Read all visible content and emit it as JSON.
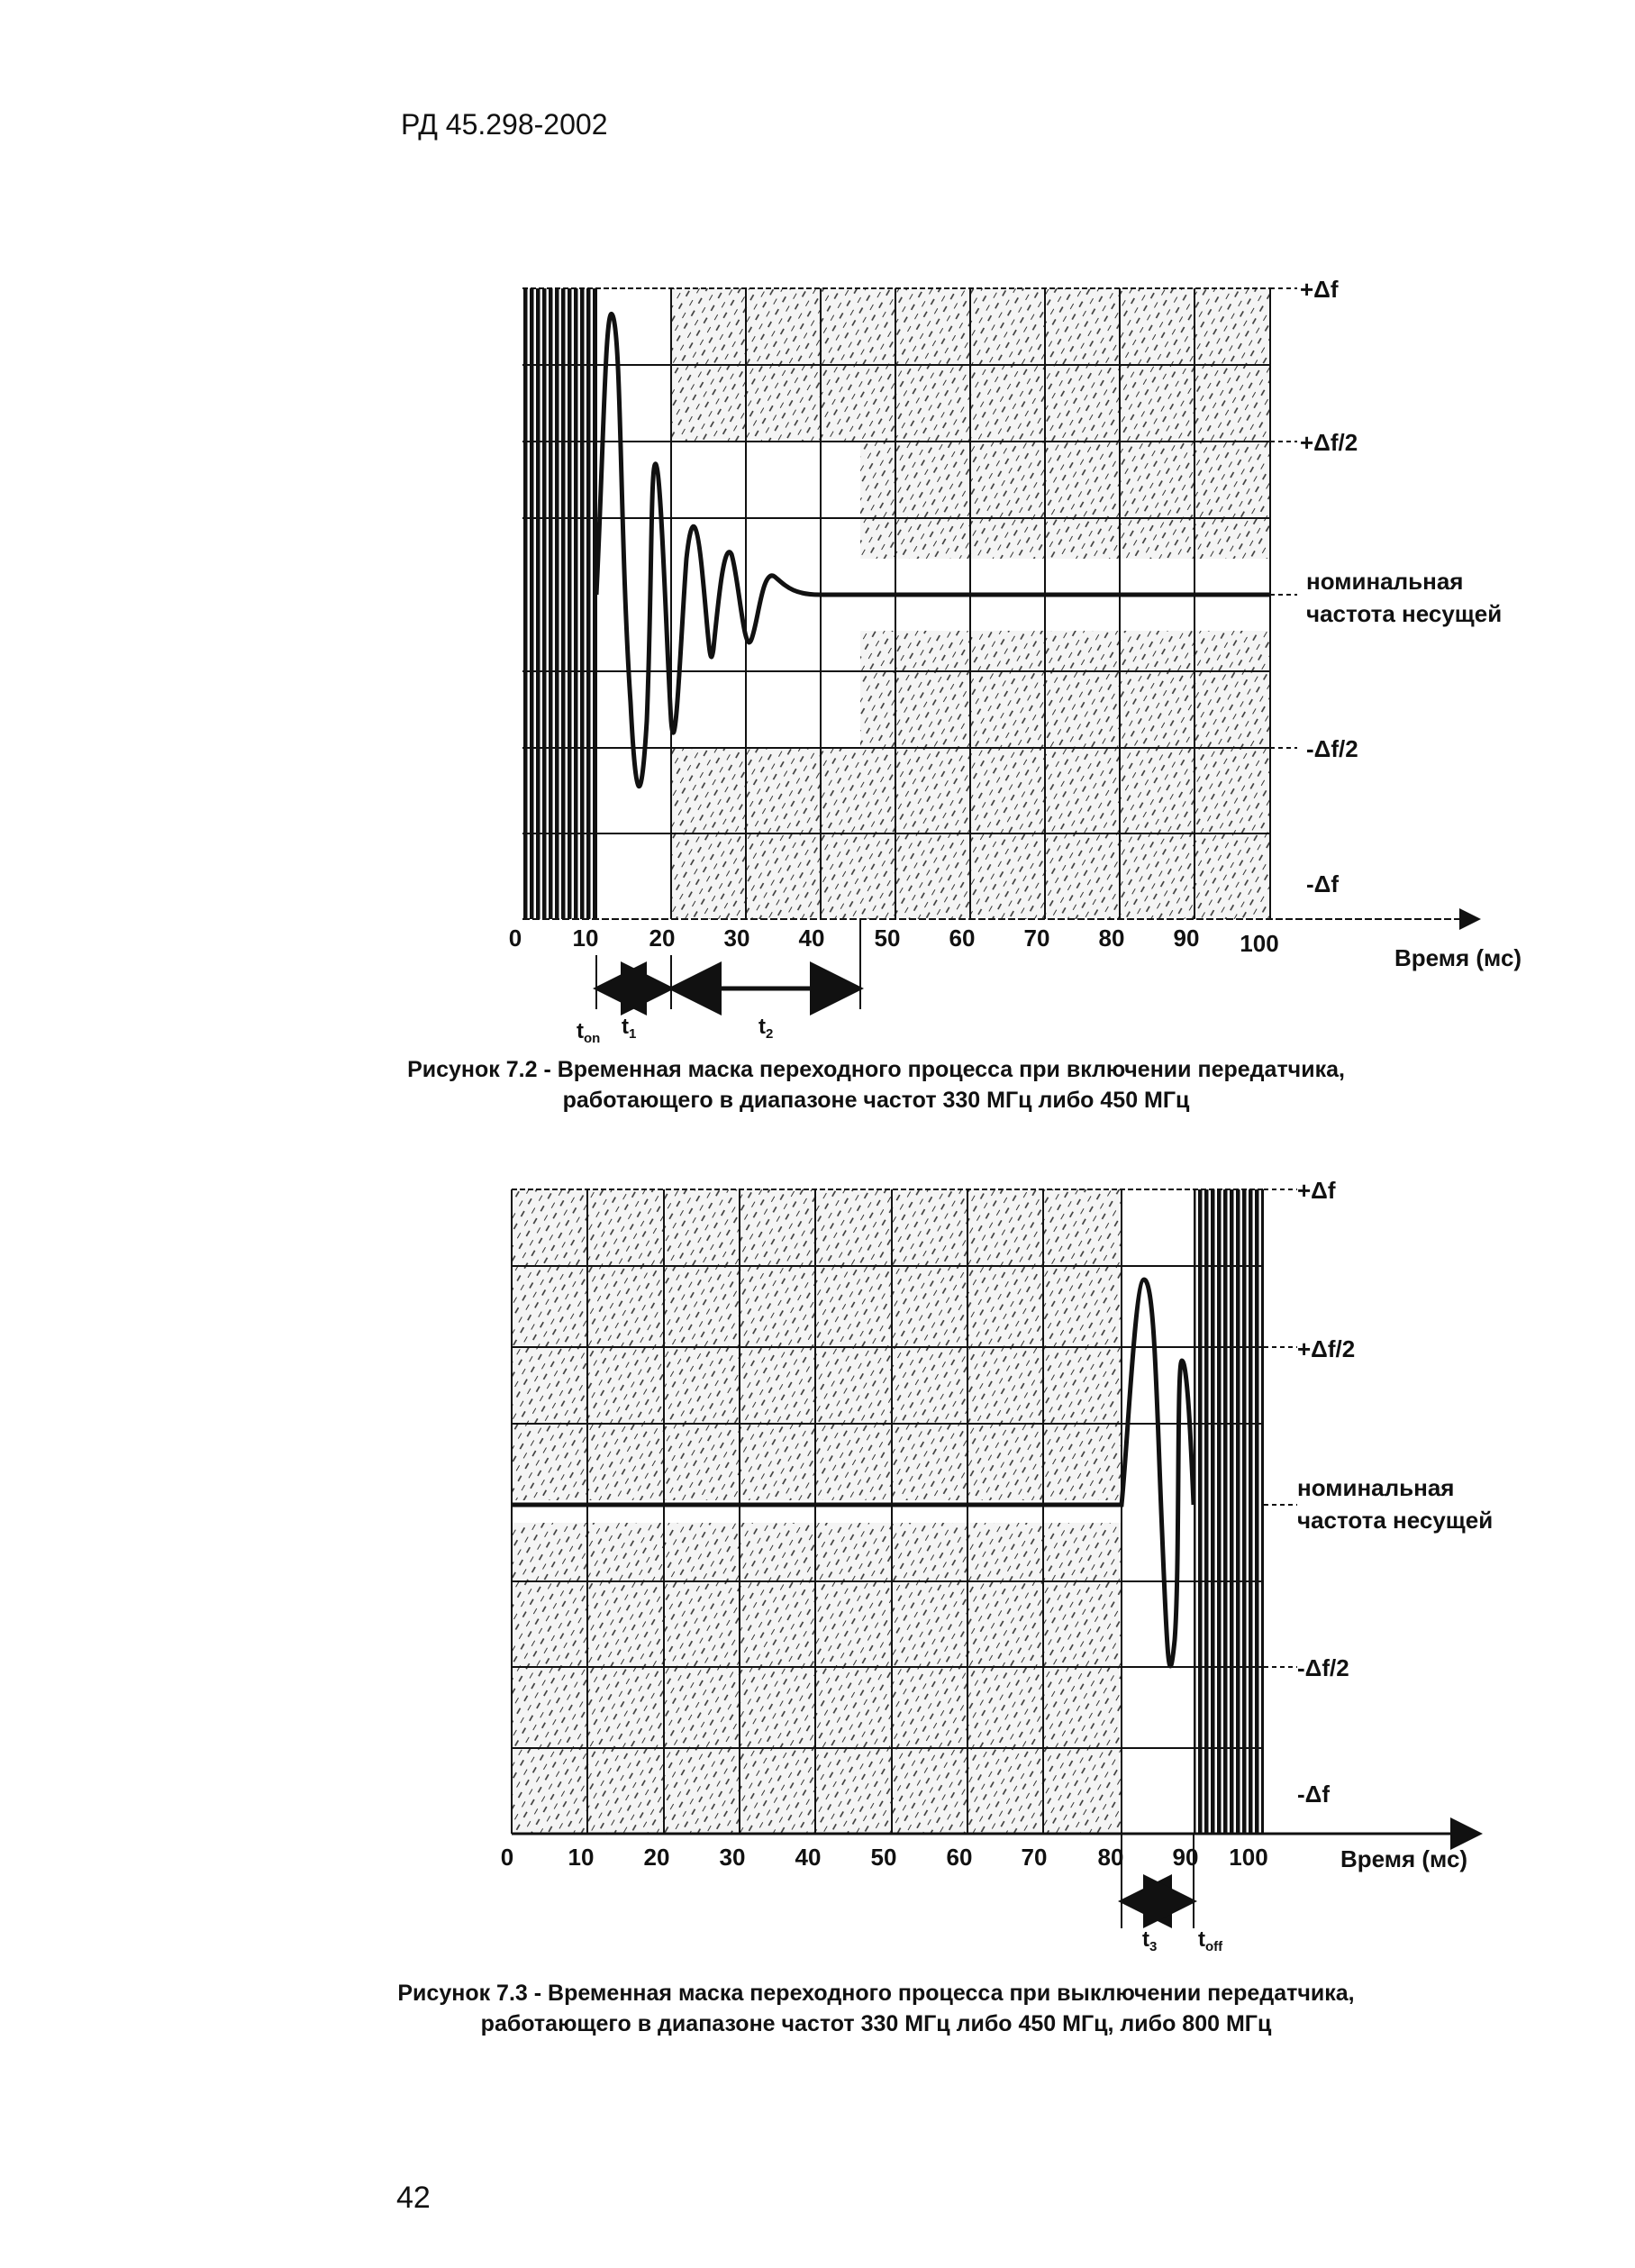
{
  "header": {
    "doc_code": "РД 45.298-2002"
  },
  "page_number": "42",
  "figures": [
    {
      "caption": [
        "Рисунок 7.2 - Временная маска переходного процесса при включении передатчика,",
        "работающего в диапазоне частот 330 МГц либо 450 МГц"
      ],
      "x_ticks": [
        "0",
        "10",
        "20",
        "30",
        "40",
        "50",
        "60",
        "70",
        "80",
        "90",
        "100"
      ],
      "x_axis_label": "Время (мс)",
      "y_labels": {
        "plus_df": "+Δf",
        "plus_half": "+Δf/2",
        "nominal_1": "номинальная",
        "nominal_2": "частота несущей",
        "minus_half": "-Δf/2",
        "minus_df": "-Δf"
      },
      "intervals": {
        "ton": "t",
        "ton_sub": "on",
        "t1": "t",
        "t1_sub": "1",
        "t2": "t",
        "t2_sub": "2"
      }
    },
    {
      "caption": [
        "Рисунок 7.3 - Временная маска переходного процесса при выключении передатчика,",
        "работающего в диапазоне частот 330 МГц либо 450 МГц, либо 800 МГц"
      ],
      "x_ticks": [
        "0",
        "10",
        "20",
        "30",
        "40",
        "50",
        "60",
        "70",
        "80",
        "90",
        "100"
      ],
      "x_axis_label": "Время (мс)",
      "y_labels": {
        "plus_df": "+Δf",
        "plus_half": "+Δf/2",
        "nominal_1": "номинальная",
        "nominal_2": "частота несущей",
        "minus_half": "-Δf/2",
        "minus_df": "-Δf"
      },
      "intervals": {
        "t3": "t",
        "t3_sub": "3",
        "toff": "t",
        "toff_sub": "off"
      }
    }
  ]
}
